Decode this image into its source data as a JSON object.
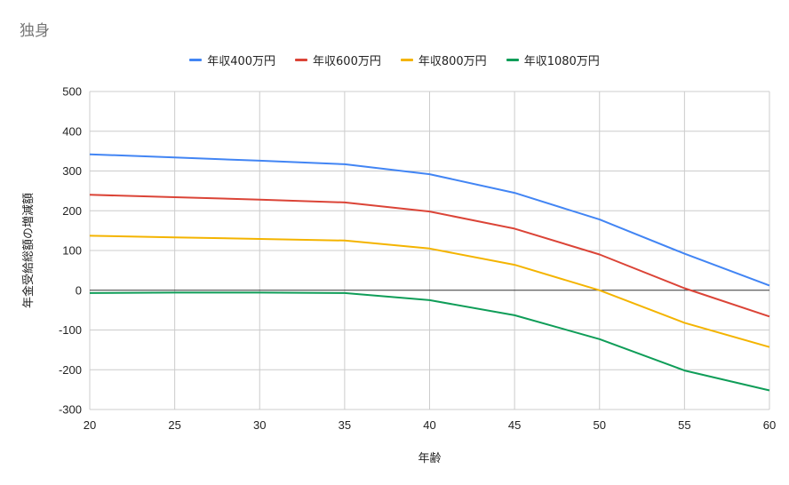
{
  "chart_data": {
    "type": "line",
    "title": "独身",
    "xlabel": "年齢",
    "ylabel": "年金受給総額の増減額",
    "x": [
      20,
      25,
      30,
      35,
      40,
      45,
      50,
      55,
      60
    ],
    "xlim": [
      20,
      60
    ],
    "ylim": [
      -300,
      500
    ],
    "yticks": [
      -300,
      -200,
      -100,
      0,
      100,
      200,
      300,
      400,
      500
    ],
    "grid": true,
    "legend_position": "top",
    "series": [
      {
        "name": "年収400万円",
        "color": "#4285F4",
        "values": [
          342,
          334,
          326,
          317,
          292,
          245,
          178,
          92,
          12
        ]
      },
      {
        "name": "年収600万円",
        "color": "#DB4437",
        "values": [
          240,
          234,
          228,
          221,
          198,
          155,
          90,
          5,
          -66
        ]
      },
      {
        "name": "年収800万円",
        "color": "#F4B400",
        "values": [
          137,
          133,
          129,
          125,
          105,
          64,
          0,
          -82,
          -143
        ]
      },
      {
        "name": "年収1080万円",
        "color": "#0F9D58",
        "values": [
          -7,
          -6,
          -6,
          -7,
          -25,
          -63,
          -123,
          -202,
          -252
        ]
      }
    ]
  }
}
